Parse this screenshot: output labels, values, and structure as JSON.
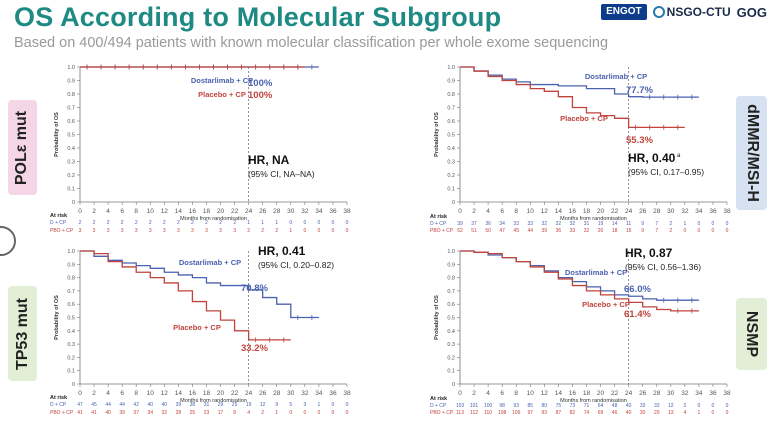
{
  "slide": {
    "title": "OS According to Molecular Subgroup",
    "subtitle": "Based on 400/494 patients with known molecular classification per whole exome sequencing",
    "logos": [
      "ENGOT",
      "NSGO-CTU",
      "GOG"
    ]
  },
  "tags": {
    "pole": "POLε mut",
    "tp53": "TP53 mut",
    "dmmr": "dMMR/MSI-H",
    "nsmp": "NSMP"
  },
  "colors": {
    "dostarlimab": "#4a62b0",
    "placebo": "#c0443c",
    "title": "#1f8a84"
  },
  "chart_data": [
    {
      "id": "pole",
      "type": "line",
      "title": "POLε mut",
      "xlabel": "Months from randomisation",
      "ylabel": "Probability of OS",
      "xlim": [
        0,
        38
      ],
      "ylim": [
        0,
        1
      ],
      "xticks": [
        "0",
        "2",
        "4",
        "6",
        "8",
        "10",
        "12",
        "14",
        "16",
        "18",
        "20",
        "22",
        "24",
        "26",
        "28",
        "30",
        "32",
        "34",
        "36",
        "38"
      ],
      "yticks": [
        "0",
        "0.1",
        "0.2",
        "0.3",
        "0.4",
        "0.5",
        "0.6",
        "0.7",
        "0.8",
        "0.9",
        "1.0"
      ],
      "series": [
        {
          "name": "Dostarlimab + CP",
          "color": "#4a62b0",
          "points": [
            [
              0,
              1.0
            ],
            [
              34,
              1.0
            ]
          ],
          "label_value": "100%"
        },
        {
          "name": "Placebo + CP",
          "color": "#c0443c",
          "points": [
            [
              0,
              1.0
            ],
            [
              32,
              1.0
            ]
          ],
          "label_value": "100%"
        }
      ],
      "hr_text": "HR, NA",
      "hr_sup": "",
      "ci_text": "(95% CI, NA–NA)",
      "at_risk_label": "At risk",
      "at_risk": [
        {
          "group": "D + CP",
          "values": [
            "2",
            "2",
            "2",
            "2",
            "2",
            "2",
            "2",
            "2",
            "2",
            "2",
            "2",
            "2",
            "1",
            "1",
            "1",
            "0",
            "0",
            "0",
            "0",
            "0"
          ]
        },
        {
          "group": "PBO + CP",
          "values": [
            "3",
            "3",
            "3",
            "3",
            "3",
            "3",
            "3",
            "3",
            "3",
            "3",
            "3",
            "3",
            "2",
            "2",
            "2",
            "1",
            "0",
            "0",
            "0",
            "0"
          ]
        }
      ]
    },
    {
      "id": "dmmr",
      "type": "line",
      "title": "dMMR/MSI-H",
      "xlabel": "Months from randomisation",
      "ylabel": "Probability of OS",
      "xlim": [
        0,
        38
      ],
      "ylim": [
        0,
        1
      ],
      "xticks": [
        "0",
        "2",
        "4",
        "6",
        "8",
        "10",
        "12",
        "14",
        "16",
        "18",
        "20",
        "22",
        "24",
        "26",
        "28",
        "30",
        "32",
        "34",
        "36",
        "38"
      ],
      "yticks": [
        "0",
        "0.1",
        "0.2",
        "0.3",
        "0.4",
        "0.5",
        "0.6",
        "0.7",
        "0.8",
        "0.9",
        "1.0"
      ],
      "series": [
        {
          "name": "Dostarlimab + CP",
          "color": "#4a62b0",
          "points": [
            [
              0,
              1.0
            ],
            [
              2,
              0.97
            ],
            [
              4,
              0.94
            ],
            [
              6,
              0.91
            ],
            [
              8,
              0.89
            ],
            [
              10,
              0.87
            ],
            [
              14,
              0.86
            ],
            [
              18,
              0.84
            ],
            [
              22,
              0.8
            ],
            [
              24,
              0.78
            ],
            [
              26,
              0.777
            ],
            [
              34,
              0.777
            ]
          ],
          "label_value": "77.7%"
        },
        {
          "name": "Placebo + CP",
          "color": "#c0443c",
          "points": [
            [
              0,
              1.0
            ],
            [
              2,
              0.97
            ],
            [
              4,
              0.93
            ],
            [
              6,
              0.9
            ],
            [
              8,
              0.87
            ],
            [
              10,
              0.84
            ],
            [
              12,
              0.82
            ],
            [
              14,
              0.78
            ],
            [
              16,
              0.7
            ],
            [
              18,
              0.66
            ],
            [
              20,
              0.64
            ],
            [
              22,
              0.62
            ],
            [
              24,
              0.553
            ],
            [
              32,
              0.553
            ]
          ],
          "label_value": "55.3%"
        }
      ],
      "hr_text": "HR, 0.40",
      "hr_sup": "a",
      "ci_text": "(95% CI, 0.17–0.95)",
      "at_risk_label": "At risk",
      "at_risk": [
        {
          "group": "D + CP",
          "values": [
            "39",
            "37",
            "36",
            "34",
            "33",
            "33",
            "32",
            "32",
            "32",
            "31",
            "19",
            "14",
            "11",
            "9",
            "7",
            "2",
            "1",
            "0",
            "0",
            "0"
          ]
        },
        {
          "group": "PBO + CP",
          "values": [
            "52",
            "51",
            "50",
            "47",
            "45",
            "44",
            "39",
            "36",
            "33",
            "32",
            "20",
            "18",
            "15",
            "9",
            "7",
            "2",
            "0",
            "0",
            "0",
            "0"
          ]
        }
      ]
    },
    {
      "id": "tp53",
      "type": "line",
      "title": "TP53 mut",
      "xlabel": "Months from randomisation",
      "ylabel": "Probability of OS",
      "xlim": [
        0,
        38
      ],
      "ylim": [
        0,
        1
      ],
      "xticks": [
        "0",
        "2",
        "4",
        "6",
        "8",
        "10",
        "12",
        "14",
        "16",
        "18",
        "20",
        "22",
        "24",
        "26",
        "28",
        "30",
        "32",
        "34",
        "36",
        "38"
      ],
      "yticks": [
        "0",
        "0.1",
        "0.2",
        "0.3",
        "0.4",
        "0.5",
        "0.6",
        "0.7",
        "0.8",
        "0.9",
        "1.0"
      ],
      "series": [
        {
          "name": "Dostarlimab + CP",
          "color": "#4a62b0",
          "points": [
            [
              0,
              1.0
            ],
            [
              2,
              0.96
            ],
            [
              4,
              0.93
            ],
            [
              6,
              0.91
            ],
            [
              8,
              0.89
            ],
            [
              10,
              0.87
            ],
            [
              12,
              0.84
            ],
            [
              14,
              0.82
            ],
            [
              16,
              0.8
            ],
            [
              18,
              0.76
            ],
            [
              20,
              0.74
            ],
            [
              24,
              0.708
            ],
            [
              26,
              0.65
            ],
            [
              28,
              0.6
            ],
            [
              30,
              0.5
            ],
            [
              34,
              0.5
            ]
          ],
          "label_value": "70.8%"
        },
        {
          "name": "Placebo + CP",
          "color": "#c0443c",
          "points": [
            [
              0,
              1.0
            ],
            [
              2,
              0.98
            ],
            [
              4,
              0.92
            ],
            [
              6,
              0.88
            ],
            [
              8,
              0.84
            ],
            [
              10,
              0.8
            ],
            [
              12,
              0.76
            ],
            [
              14,
              0.7
            ],
            [
              16,
              0.62
            ],
            [
              18,
              0.55
            ],
            [
              20,
              0.48
            ],
            [
              22,
              0.4
            ],
            [
              24,
              0.332
            ],
            [
              30,
              0.332
            ]
          ],
          "label_value": "33.2%"
        }
      ],
      "hr_text": "HR, 0.41",
      "hr_sup": "",
      "ci_text": "(95% CI, 0.20–0.82)",
      "at_risk_label": "At risk",
      "at_risk": [
        {
          "group": "D + CP",
          "values": [
            "47",
            "45",
            "44",
            "44",
            "42",
            "40",
            "40",
            "39",
            "38",
            "31",
            "29",
            "25",
            "19",
            "12",
            "9",
            "5",
            "3",
            "1",
            "0",
            "0"
          ]
        },
        {
          "group": "PBO + CP",
          "values": [
            "41",
            "41",
            "40",
            "39",
            "37",
            "34",
            "32",
            "28",
            "25",
            "23",
            "17",
            "8",
            "4",
            "2",
            "1",
            "0",
            "0",
            "0",
            "0",
            "0"
          ]
        }
      ]
    },
    {
      "id": "nsmp",
      "type": "line",
      "title": "NSMP",
      "xlabel": "Months from randomisation",
      "ylabel": "Probability of OS",
      "xlim": [
        0,
        38
      ],
      "ylim": [
        0,
        1
      ],
      "xticks": [
        "0",
        "2",
        "4",
        "6",
        "8",
        "10",
        "12",
        "14",
        "16",
        "18",
        "20",
        "22",
        "24",
        "26",
        "28",
        "30",
        "32",
        "34",
        "36",
        "38"
      ],
      "yticks": [
        "0",
        "0.1",
        "0.2",
        "0.3",
        "0.4",
        "0.5",
        "0.6",
        "0.7",
        "0.8",
        "0.9",
        "1.0"
      ],
      "series": [
        {
          "name": "Dostarlimab + CP",
          "color": "#4a62b0",
          "points": [
            [
              0,
              1.0
            ],
            [
              2,
              0.99
            ],
            [
              4,
              0.97
            ],
            [
              6,
              0.95
            ],
            [
              8,
              0.92
            ],
            [
              10,
              0.89
            ],
            [
              12,
              0.85
            ],
            [
              14,
              0.8
            ],
            [
              16,
              0.77
            ],
            [
              18,
              0.73
            ],
            [
              20,
              0.7
            ],
            [
              22,
              0.67
            ],
            [
              24,
              0.66
            ],
            [
              26,
              0.64
            ],
            [
              28,
              0.63
            ],
            [
              34,
              0.63
            ]
          ],
          "label_value": "66.0%"
        },
        {
          "name": "Placebo + CP",
          "color": "#c0443c",
          "points": [
            [
              0,
              1.0
            ],
            [
              2,
              0.99
            ],
            [
              4,
              0.98
            ],
            [
              6,
              0.95
            ],
            [
              8,
              0.92
            ],
            [
              10,
              0.88
            ],
            [
              12,
              0.84
            ],
            [
              14,
              0.79
            ],
            [
              16,
              0.74
            ],
            [
              18,
              0.7
            ],
            [
              20,
              0.67
            ],
            [
              22,
              0.64
            ],
            [
              24,
              0.614
            ],
            [
              26,
              0.58
            ],
            [
              28,
              0.56
            ],
            [
              30,
              0.55
            ],
            [
              34,
              0.55
            ]
          ],
          "label_value": "61.4%"
        }
      ],
      "hr_text": "HR, 0.87",
      "hr_sup": "",
      "ci_text": "(95% CI, 0.56–1.36)",
      "at_risk_label": "At risk",
      "at_risk": [
        {
          "group": "D + CP",
          "values": [
            "103",
            "101",
            "100",
            "98",
            "93",
            "85",
            "80",
            "75",
            "73",
            "71",
            "64",
            "48",
            "40",
            "33",
            "33",
            "12",
            "2",
            "0",
            "0",
            "0"
          ]
        },
        {
          "group": "PBO + CP",
          "values": [
            "113",
            "112",
            "110",
            "108",
            "106",
            "97",
            "93",
            "87",
            "82",
            "74",
            "69",
            "46",
            "40",
            "30",
            "20",
            "13",
            "4",
            "1",
            "0",
            "0"
          ]
        }
      ]
    }
  ]
}
